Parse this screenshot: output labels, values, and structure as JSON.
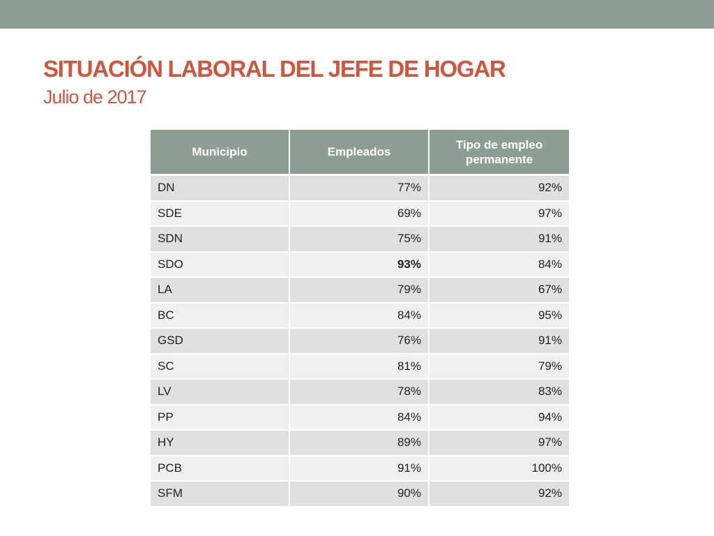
{
  "slide": {
    "title": "SITUACIÓN LABORAL DEL JEFE DE HOGAR",
    "subtitle": "Julio de 2017"
  },
  "colors": {
    "header_bar": "#8e9e92",
    "title": "#d1553b",
    "row_odd": "#dee1de",
    "row_even": "#eff0ef"
  },
  "table": {
    "headers": [
      "Municipio",
      "Empleados",
      "Tipo de empleo permanente"
    ],
    "rows": [
      {
        "municipio": "DN",
        "empleados": "77%",
        "permanente": "92%"
      },
      {
        "municipio": "SDE",
        "empleados": "69%",
        "permanente": "97%"
      },
      {
        "municipio": "SDN",
        "empleados": "75%",
        "permanente": "91%"
      },
      {
        "municipio": "SDO",
        "empleados": "93%",
        "permanente": "84%",
        "empleados_bold": true
      },
      {
        "municipio": "LA",
        "empleados": "79%",
        "permanente": "67%"
      },
      {
        "municipio": "BC",
        "empleados": "84%",
        "permanente": "95%"
      },
      {
        "municipio": "GSD",
        "empleados": "76%",
        "permanente": "91%"
      },
      {
        "municipio": "SC",
        "empleados": "81%",
        "permanente": "79%"
      },
      {
        "municipio": "LV",
        "empleados": "78%",
        "permanente": "83%"
      },
      {
        "municipio": "PP",
        "empleados": "84%",
        "permanente": "94%"
      },
      {
        "municipio": "HY",
        "empleados": "89%",
        "permanente": "97%"
      },
      {
        "municipio": "PCB",
        "empleados": "91%",
        "permanente": "100%"
      },
      {
        "municipio": "SFM",
        "empleados": "90%",
        "permanente": "92%"
      }
    ]
  }
}
